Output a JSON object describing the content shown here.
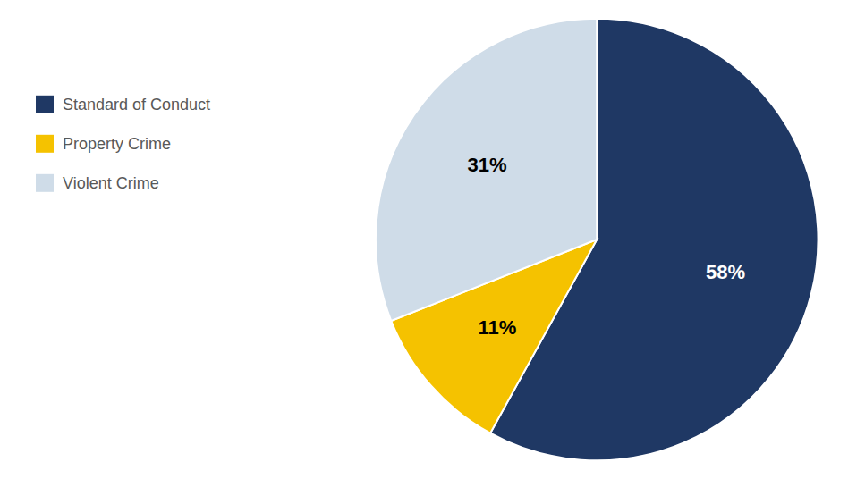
{
  "chart_data": {
    "type": "pie",
    "categories": [
      "Standard of Conduct",
      "Property Crime",
      "Violent Crime"
    ],
    "values": [
      58,
      11,
      31
    ],
    "value_labels": [
      "58%",
      "11%",
      "31%"
    ],
    "colors": [
      "#1f3864",
      "#f5c200",
      "#cfdce8"
    ],
    "data_labels": true,
    "legend": "left"
  }
}
